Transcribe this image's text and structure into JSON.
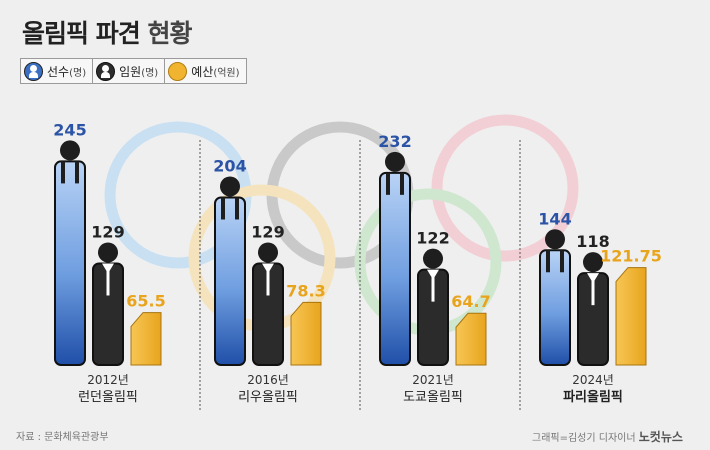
{
  "title": {
    "main": "올림픽 파견",
    "sub": "현황"
  },
  "legend": {
    "athletes": {
      "label": "선수",
      "unit": "(명)"
    },
    "officials": {
      "label": "임원",
      "unit": "(명)"
    },
    "budget": {
      "label": "예산",
      "unit": "(억원)"
    }
  },
  "colors": {
    "athletes": "#3a6fc4",
    "officials": "#2b2b2b",
    "budget": "#f1b431",
    "ring_blue": "#c8e0f2",
    "ring_gray": "#c9c9c9",
    "ring_red": "#f2cfd5",
    "ring_yellow": "#f4e3bd",
    "ring_green": "#cfe7cf"
  },
  "chart_data": {
    "type": "bar",
    "title": "올림픽 파견 현황",
    "categories": [
      {
        "year": "2012년",
        "name": "런던올림픽"
      },
      {
        "year": "2016년",
        "name": "리우올림픽"
      },
      {
        "year": "2021년",
        "name": "도쿄올림픽"
      },
      {
        "year": "2024년",
        "name": "파리올림픽"
      }
    ],
    "series": [
      {
        "name": "선수(명)",
        "values": [
          245,
          204,
          232,
          144
        ],
        "labels": [
          "245",
          "204",
          "232",
          "144"
        ]
      },
      {
        "name": "임원(명)",
        "values": [
          129,
          129,
          122,
          118
        ],
        "labels": [
          "129",
          "129",
          "122",
          "118"
        ]
      },
      {
        "name": "예산(억원)",
        "values": [
          65.5,
          78.3,
          64.7,
          121.75
        ],
        "labels": [
          "65.5",
          "78.3",
          "64.7",
          "121.75"
        ]
      }
    ]
  },
  "footer": {
    "source": "자료 : 문화체육관광부",
    "credit": "그래픽=김성기 디자이너",
    "logo": "노컷뉴스"
  }
}
